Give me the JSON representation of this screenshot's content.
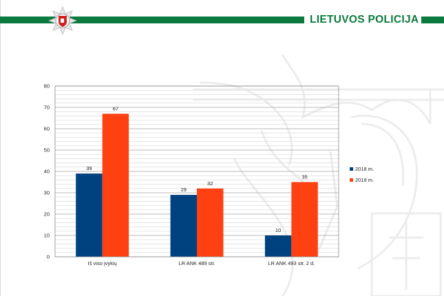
{
  "header": {
    "brand": "LIETUVOS POLICIJA",
    "band_color": "#0b7a3e",
    "emblem_icon": "police-star-emblem"
  },
  "chart_data": {
    "type": "bar",
    "categories": [
      "Iš viso įvykių",
      "LR ANK 489 str.",
      "LR ANK 493 str. 2 d."
    ],
    "series": [
      {
        "name": "2018 m.",
        "color": "#00427f",
        "values": [
          39,
          29,
          10
        ]
      },
      {
        "name": "2019 m.",
        "color": "#ff4010",
        "values": [
          67,
          32,
          35
        ]
      }
    ],
    "ylim": [
      0,
      80
    ],
    "yticks": [
      0,
      10,
      20,
      30,
      40,
      50,
      60,
      70,
      80
    ],
    "minor_grid_step": 2,
    "grid": true,
    "legend_position": "right",
    "title": "",
    "xlabel": "",
    "ylabel": ""
  }
}
